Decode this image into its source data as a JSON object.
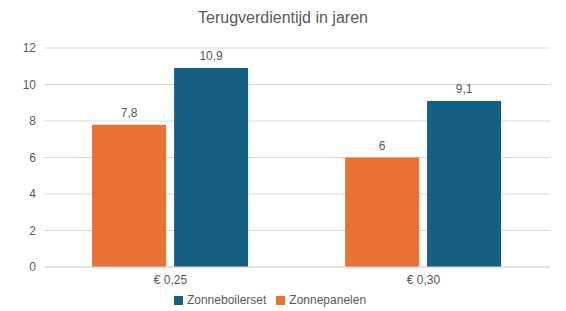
{
  "chart_data": {
    "type": "bar",
    "title": "Terugverdientijd in jaren",
    "categories": [
      "€ 0,25",
      "€ 0,30"
    ],
    "series": [
      {
        "name": "Zonnepanelen",
        "color": "#e97132",
        "values": [
          7.8,
          6
        ],
        "value_labels": [
          "7,8",
          "6"
        ]
      },
      {
        "name": "Zonneboilerset",
        "color": "#156082",
        "values": [
          10.9,
          9.1
        ],
        "value_labels": [
          "10,9",
          "9,1"
        ]
      }
    ],
    "ylim": [
      0,
      12
    ],
    "yticks": [
      0,
      2,
      4,
      6,
      8,
      10,
      12
    ],
    "grid": true,
    "legend": "bottom",
    "data_labels": true
  }
}
